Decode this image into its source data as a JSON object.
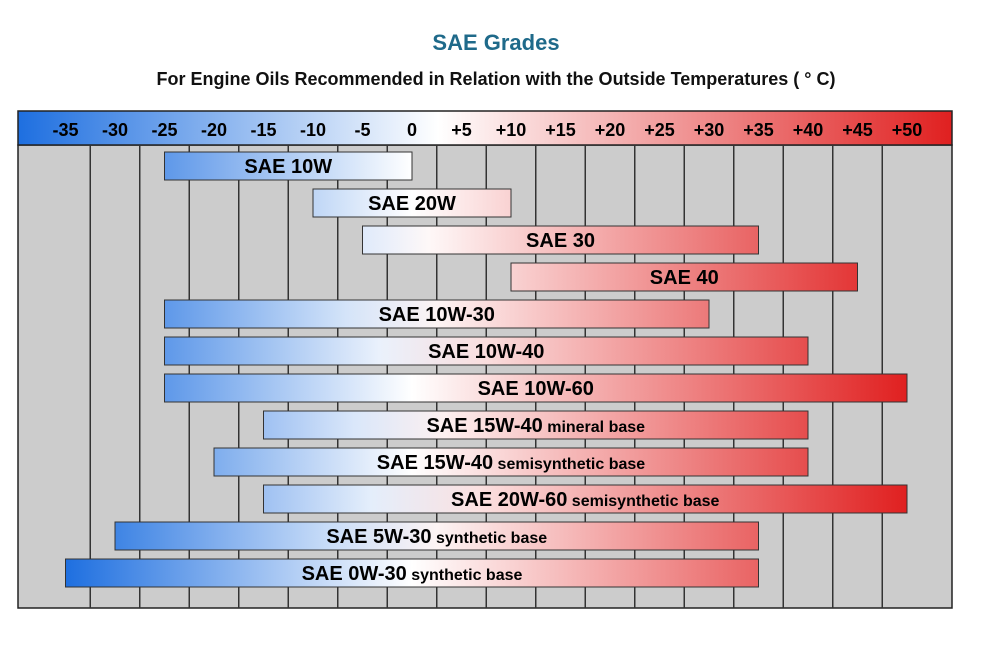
{
  "chart_data": {
    "type": "bar",
    "orientation": "horizontal-range",
    "title": "SAE Grades",
    "subtitle": "For Engine Oils Recommended in Relation with the Outside Temperatures ( ° C)",
    "x_tick_labels": [
      "-35",
      "-30",
      "-25",
      "-20",
      "-15",
      "-10",
      "-5",
      "0",
      "+5",
      "+10",
      "+15",
      "+20",
      "+25",
      "+30",
      "+35",
      "+40",
      "+45",
      "+50"
    ],
    "x_ticks": [
      -35,
      -30,
      -25,
      -20,
      -15,
      -10,
      -5,
      0,
      5,
      10,
      15,
      20,
      25,
      30,
      35,
      40,
      45,
      50
    ],
    "xlim": [
      -40,
      55
    ],
    "grid": true,
    "colors": {
      "cold": "#1e6fe0",
      "neutral": "#ffffff",
      "hot": "#e02020",
      "grid_bg": "#cccccc",
      "title": "#1f6a8a"
    },
    "series": [
      {
        "name": "SAE 10W",
        "label": "SAE 10W",
        "suffix": "",
        "min": -25,
        "max": 0
      },
      {
        "name": "SAE 20W",
        "label": "SAE 20W",
        "suffix": "",
        "min": -10,
        "max": 10
      },
      {
        "name": "SAE 30",
        "label": "SAE 30",
        "suffix": "",
        "min": -5,
        "max": 35
      },
      {
        "name": "SAE 40",
        "label": "SAE 40",
        "suffix": "",
        "min": 10,
        "max": 45
      },
      {
        "name": "SAE 10W-30",
        "label": "SAE 10W-30",
        "suffix": "",
        "min": -25,
        "max": 30
      },
      {
        "name": "SAE 10W-40",
        "label": "SAE 10W-40",
        "suffix": "",
        "min": -25,
        "max": 40
      },
      {
        "name": "SAE 10W-60",
        "label": "SAE 10W-60",
        "suffix": "",
        "min": -25,
        "max": 50
      },
      {
        "name": "SAE 15W-40 mineral base",
        "label": "SAE 15W-40",
        "suffix": "mineral base",
        "min": -15,
        "max": 40
      },
      {
        "name": "SAE 15W-40 semisynthetic base",
        "label": "SAE 15W-40",
        "suffix": "semisynthetic base",
        "min": -20,
        "max": 40
      },
      {
        "name": "SAE 20W-60 semisynthetic base",
        "label": "SAE 20W-60",
        "suffix": "semisynthetic base",
        "min": -15,
        "max": 50
      },
      {
        "name": "SAE 5W-30 synthetic base",
        "label": "SAE 5W-30",
        "suffix": "synthetic base",
        "min": -30,
        "max": 35
      },
      {
        "name": "SAE 0W-30 synthetic base",
        "label": "SAE 0W-30",
        "suffix": "synthetic base",
        "min": -35,
        "max": 35
      }
    ]
  }
}
